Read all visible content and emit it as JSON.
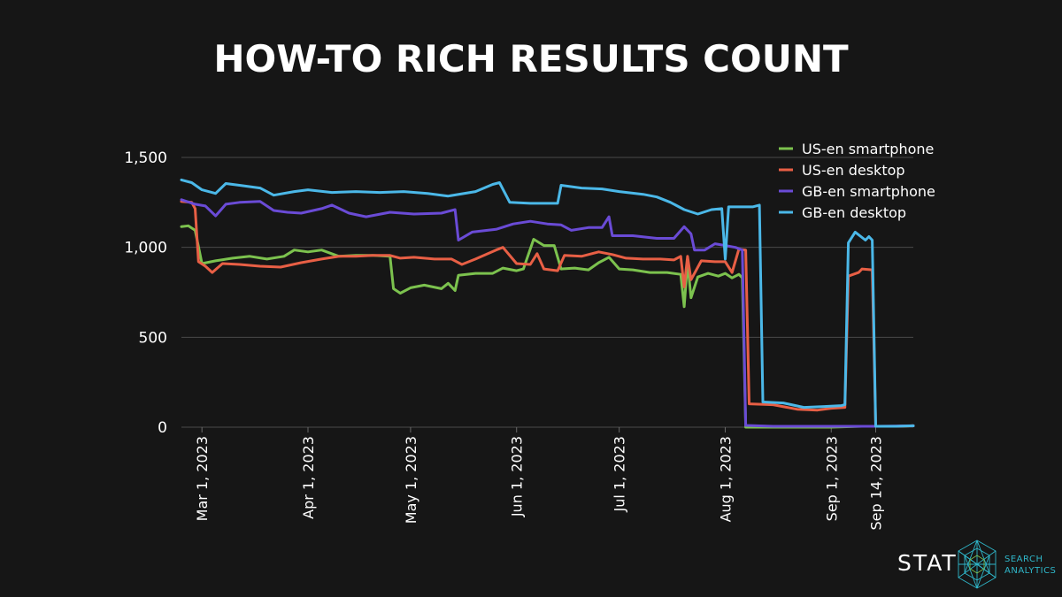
{
  "chart_data": {
    "type": "line",
    "title": "HOW-TO RICH RESULTS COUNT",
    "xlabel": "",
    "ylabel": "",
    "ylim": [
      0,
      1500
    ],
    "y_ticks": [
      0,
      500,
      1000,
      1500
    ],
    "y_tick_labels": [
      "0",
      "500",
      "1,000",
      "1,500"
    ],
    "x_range": [
      "2023-02-23",
      "2023-09-25"
    ],
    "x_ticks": [
      "2023-03-01",
      "2023-04-01",
      "2023-05-01",
      "2023-06-01",
      "2023-07-01",
      "2023-08-01",
      "2023-09-01",
      "2023-09-14"
    ],
    "x_tick_labels": [
      "Mar 1, 2023",
      "Apr 1, 2023",
      "May 1, 2023",
      "Jun 1, 2023",
      "Jul 1, 2023",
      "Aug 1, 2023",
      "Sep 1, 2023",
      "Sep 14, 2023"
    ],
    "grid": "horizontal",
    "legend_position": "top-right",
    "series": [
      {
        "name": "US-en smartphone",
        "color": "#7cc24e",
        "points": [
          [
            "2023-02-23",
            1115
          ],
          [
            "2023-02-25",
            1120
          ],
          [
            "2023-02-27",
            1095
          ],
          [
            "2023-03-01",
            910
          ],
          [
            "2023-03-05",
            925
          ],
          [
            "2023-03-10",
            940
          ],
          [
            "2023-03-15",
            950
          ],
          [
            "2023-03-20",
            935
          ],
          [
            "2023-03-25",
            950
          ],
          [
            "2023-03-28",
            985
          ],
          [
            "2023-04-01",
            975
          ],
          [
            "2023-04-05",
            985
          ],
          [
            "2023-04-10",
            950
          ],
          [
            "2023-04-15",
            955
          ],
          [
            "2023-04-20",
            955
          ],
          [
            "2023-04-25",
            950
          ],
          [
            "2023-04-26",
            770
          ],
          [
            "2023-04-28",
            745
          ],
          [
            "2023-05-01",
            775
          ],
          [
            "2023-05-05",
            790
          ],
          [
            "2023-05-10",
            770
          ],
          [
            "2023-05-12",
            800
          ],
          [
            "2023-05-14",
            760
          ],
          [
            "2023-05-15",
            845
          ],
          [
            "2023-05-20",
            855
          ],
          [
            "2023-05-25",
            855
          ],
          [
            "2023-05-28",
            885
          ],
          [
            "2023-06-01",
            870
          ],
          [
            "2023-06-03",
            880
          ],
          [
            "2023-06-06",
            1045
          ],
          [
            "2023-06-09",
            1010
          ],
          [
            "2023-06-12",
            1010
          ],
          [
            "2023-06-14",
            880
          ],
          [
            "2023-06-18",
            885
          ],
          [
            "2023-06-22",
            875
          ],
          [
            "2023-06-25",
            915
          ],
          [
            "2023-06-28",
            945
          ],
          [
            "2023-07-01",
            880
          ],
          [
            "2023-07-05",
            875
          ],
          [
            "2023-07-10",
            860
          ],
          [
            "2023-07-15",
            860
          ],
          [
            "2023-07-19",
            850
          ],
          [
            "2023-07-20",
            670
          ],
          [
            "2023-07-21",
            920
          ],
          [
            "2023-07-22",
            720
          ],
          [
            "2023-07-24",
            835
          ],
          [
            "2023-07-27",
            855
          ],
          [
            "2023-07-30",
            840
          ],
          [
            "2023-08-01",
            855
          ],
          [
            "2023-08-03",
            830
          ],
          [
            "2023-08-05",
            850
          ],
          [
            "2023-08-06",
            830
          ],
          [
            "2023-08-07",
            0
          ],
          [
            "2023-08-20",
            0
          ],
          [
            "2023-09-01",
            0
          ],
          [
            "2023-09-10",
            5
          ],
          [
            "2023-09-14",
            5
          ],
          [
            "2023-09-20",
            5
          ],
          [
            "2023-09-25",
            8
          ]
        ]
      },
      {
        "name": "US-en desktop",
        "color": "#e85f45",
        "points": [
          [
            "2023-02-23",
            1255
          ],
          [
            "2023-02-26",
            1250
          ],
          [
            "2023-02-27",
            1215
          ],
          [
            "2023-02-28",
            920
          ],
          [
            "2023-03-02",
            895
          ],
          [
            "2023-03-04",
            860
          ],
          [
            "2023-03-07",
            910
          ],
          [
            "2023-03-12",
            905
          ],
          [
            "2023-03-18",
            895
          ],
          [
            "2023-03-24",
            890
          ],
          [
            "2023-03-30",
            915
          ],
          [
            "2023-04-05",
            935
          ],
          [
            "2023-04-10",
            950
          ],
          [
            "2023-04-15",
            950
          ],
          [
            "2023-04-20",
            955
          ],
          [
            "2023-04-25",
            955
          ],
          [
            "2023-04-28",
            940
          ],
          [
            "2023-05-02",
            945
          ],
          [
            "2023-05-08",
            935
          ],
          [
            "2023-05-13",
            935
          ],
          [
            "2023-05-16",
            905
          ],
          [
            "2023-05-20",
            935
          ],
          [
            "2023-05-26",
            985
          ],
          [
            "2023-05-28",
            1000
          ],
          [
            "2023-06-01",
            910
          ],
          [
            "2023-06-05",
            905
          ],
          [
            "2023-06-07",
            965
          ],
          [
            "2023-06-09",
            880
          ],
          [
            "2023-06-13",
            870
          ],
          [
            "2023-06-15",
            955
          ],
          [
            "2023-06-20",
            950
          ],
          [
            "2023-06-25",
            975
          ],
          [
            "2023-06-29",
            960
          ],
          [
            "2023-07-03",
            940
          ],
          [
            "2023-07-08",
            935
          ],
          [
            "2023-07-13",
            935
          ],
          [
            "2023-07-17",
            930
          ],
          [
            "2023-07-19",
            950
          ],
          [
            "2023-07-20",
            780
          ],
          [
            "2023-07-21",
            950
          ],
          [
            "2023-07-22",
            820
          ],
          [
            "2023-07-25",
            925
          ],
          [
            "2023-07-29",
            920
          ],
          [
            "2023-08-01",
            920
          ],
          [
            "2023-08-03",
            860
          ],
          [
            "2023-08-05",
            990
          ],
          [
            "2023-08-07",
            985
          ],
          [
            "2023-08-08",
            130
          ],
          [
            "2023-08-15",
            125
          ],
          [
            "2023-08-22",
            100
          ],
          [
            "2023-08-28",
            95
          ],
          [
            "2023-09-01",
            105
          ],
          [
            "2023-09-05",
            110
          ],
          [
            "2023-09-06",
            840
          ],
          [
            "2023-09-09",
            860
          ],
          [
            "2023-09-10",
            880
          ],
          [
            "2023-09-13",
            875
          ],
          [
            "2023-09-14",
            5
          ],
          [
            "2023-09-20",
            5
          ],
          [
            "2023-09-25",
            8
          ]
        ]
      },
      {
        "name": "GB-en smartphone",
        "color": "#6a4bd6",
        "points": [
          [
            "2023-02-23",
            1265
          ],
          [
            "2023-02-27",
            1240
          ],
          [
            "2023-03-02",
            1230
          ],
          [
            "2023-03-05",
            1175
          ],
          [
            "2023-03-08",
            1240
          ],
          [
            "2023-03-12",
            1250
          ],
          [
            "2023-03-18",
            1255
          ],
          [
            "2023-03-22",
            1205
          ],
          [
            "2023-03-26",
            1195
          ],
          [
            "2023-03-30",
            1190
          ],
          [
            "2023-04-05",
            1215
          ],
          [
            "2023-04-08",
            1235
          ],
          [
            "2023-04-13",
            1190
          ],
          [
            "2023-04-18",
            1170
          ],
          [
            "2023-04-25",
            1195
          ],
          [
            "2023-05-02",
            1185
          ],
          [
            "2023-05-10",
            1190
          ],
          [
            "2023-05-14",
            1210
          ],
          [
            "2023-05-15",
            1040
          ],
          [
            "2023-05-19",
            1085
          ],
          [
            "2023-05-26",
            1100
          ],
          [
            "2023-05-31",
            1130
          ],
          [
            "2023-06-05",
            1145
          ],
          [
            "2023-06-10",
            1130
          ],
          [
            "2023-06-14",
            1125
          ],
          [
            "2023-06-17",
            1095
          ],
          [
            "2023-06-22",
            1110
          ],
          [
            "2023-06-26",
            1110
          ],
          [
            "2023-06-28",
            1170
          ],
          [
            "2023-06-29",
            1065
          ],
          [
            "2023-07-05",
            1065
          ],
          [
            "2023-07-12",
            1050
          ],
          [
            "2023-07-17",
            1050
          ],
          [
            "2023-07-20",
            1115
          ],
          [
            "2023-07-22",
            1075
          ],
          [
            "2023-07-23",
            985
          ],
          [
            "2023-07-26",
            985
          ],
          [
            "2023-07-29",
            1020
          ],
          [
            "2023-08-01",
            1010
          ],
          [
            "2023-08-04",
            1000
          ],
          [
            "2023-08-06",
            985
          ],
          [
            "2023-08-07",
            10
          ],
          [
            "2023-08-15",
            5
          ],
          [
            "2023-09-01",
            5
          ],
          [
            "2023-09-14",
            5
          ],
          [
            "2023-09-25",
            8
          ]
        ]
      },
      {
        "name": "GB-en desktop",
        "color": "#4bb8e8",
        "points": [
          [
            "2023-02-23",
            1375
          ],
          [
            "2023-02-26",
            1360
          ],
          [
            "2023-03-01",
            1320
          ],
          [
            "2023-03-05",
            1300
          ],
          [
            "2023-03-08",
            1355
          ],
          [
            "2023-03-12",
            1345
          ],
          [
            "2023-03-18",
            1330
          ],
          [
            "2023-03-22",
            1290
          ],
          [
            "2023-03-28",
            1310
          ],
          [
            "2023-04-01",
            1320
          ],
          [
            "2023-04-08",
            1305
          ],
          [
            "2023-04-15",
            1310
          ],
          [
            "2023-04-22",
            1305
          ],
          [
            "2023-04-29",
            1310
          ],
          [
            "2023-05-06",
            1300
          ],
          [
            "2023-05-12",
            1285
          ],
          [
            "2023-05-20",
            1310
          ],
          [
            "2023-05-25",
            1350
          ],
          [
            "2023-05-27",
            1360
          ],
          [
            "2023-05-30",
            1250
          ],
          [
            "2023-06-05",
            1245
          ],
          [
            "2023-06-10",
            1245
          ],
          [
            "2023-06-13",
            1245
          ],
          [
            "2023-06-14",
            1345
          ],
          [
            "2023-06-20",
            1330
          ],
          [
            "2023-06-26",
            1325
          ],
          [
            "2023-07-01",
            1310
          ],
          [
            "2023-07-08",
            1295
          ],
          [
            "2023-07-12",
            1280
          ],
          [
            "2023-07-16",
            1250
          ],
          [
            "2023-07-20",
            1210
          ],
          [
            "2023-07-24",
            1185
          ],
          [
            "2023-07-28",
            1210
          ],
          [
            "2023-07-31",
            1215
          ],
          [
            "2023-08-01",
            935
          ],
          [
            "2023-08-02",
            1225
          ],
          [
            "2023-08-06",
            1225
          ],
          [
            "2023-08-09",
            1225
          ],
          [
            "2023-08-11",
            1235
          ],
          [
            "2023-08-12",
            140
          ],
          [
            "2023-08-18",
            135
          ],
          [
            "2023-08-24",
            110
          ],
          [
            "2023-08-30",
            115
          ],
          [
            "2023-09-04",
            120
          ],
          [
            "2023-09-05",
            125
          ],
          [
            "2023-09-06",
            1025
          ],
          [
            "2023-09-08",
            1085
          ],
          [
            "2023-09-11",
            1040
          ],
          [
            "2023-09-12",
            1060
          ],
          [
            "2023-09-13",
            1040
          ],
          [
            "2023-09-14",
            5
          ],
          [
            "2023-09-20",
            5
          ],
          [
            "2023-09-25",
            8
          ]
        ]
      }
    ]
  },
  "branding": {
    "logo_text": "STAT",
    "logo_sub_line1": "SEARCH",
    "logo_sub_line2": "ANALYTICS",
    "accent_color": "#2fb6c9",
    "logo_icon": "geodesic-sphere-icon"
  }
}
